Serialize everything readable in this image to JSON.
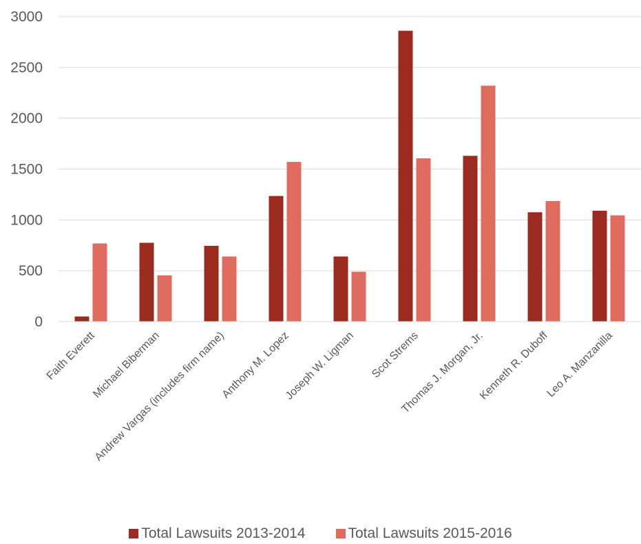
{
  "chart_data": {
    "type": "bar",
    "title": "",
    "xlabel": "",
    "ylabel": "",
    "ylim": [
      0,
      3000
    ],
    "yticks": [
      0,
      500,
      1000,
      1500,
      2000,
      2500,
      3000
    ],
    "grid": true,
    "legend_position": "bottom",
    "categories": [
      "Faith Everett",
      "Michael Biberman",
      "Andrew Vargas (includes firm name)",
      "Anthony M. Lopez",
      "Joseph W. Ligman",
      "Scot Strems",
      "Thomas J. Morgan, Jr.",
      "Kenneth R. Duboff",
      "Leo A. Manzanilla"
    ],
    "series": [
      {
        "name": "Total Lawsuits 2013-2014",
        "color": "#9c2b1f",
        "values": [
          50,
          775,
          745,
          1235,
          640,
          2860,
          1630,
          1075,
          1090
        ]
      },
      {
        "name": "Total Lawsuits 2015-2016",
        "color": "#e06b5f",
        "values": [
          768,
          455,
          640,
          1570,
          490,
          1605,
          2320,
          1185,
          1045
        ]
      }
    ]
  }
}
